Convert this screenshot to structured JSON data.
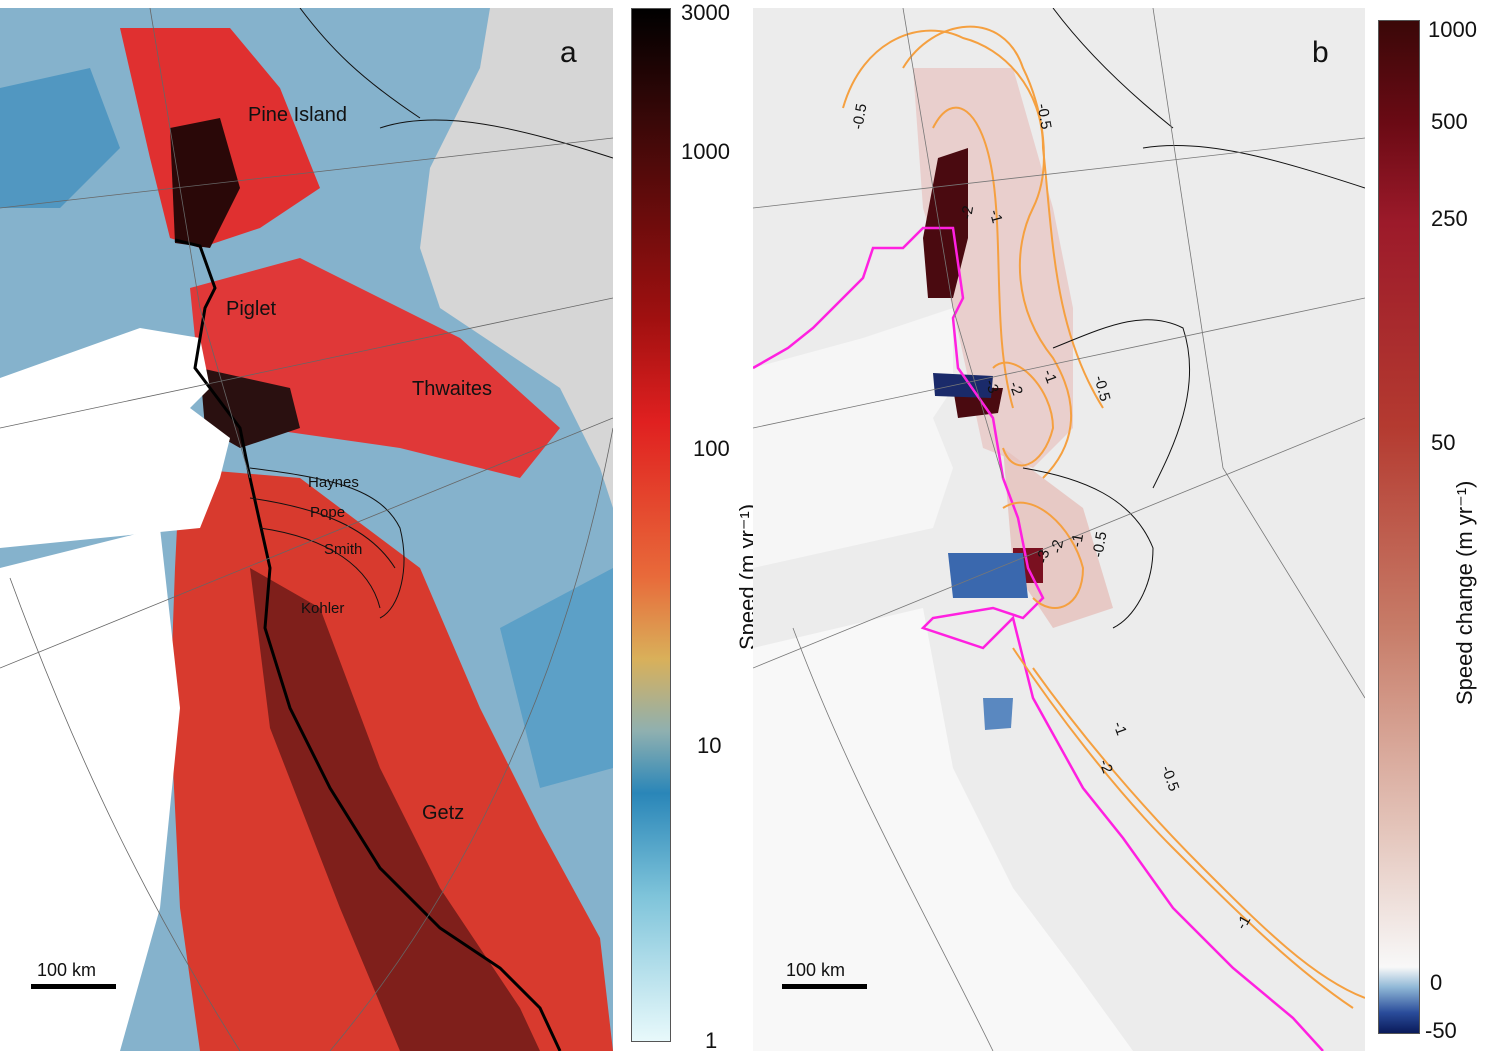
{
  "panel_a": {
    "letter": "a",
    "labels": {
      "pine_island": "Pine Island",
      "piglet": "Piglet",
      "thwaites": "Thwaites",
      "haynes": "Haynes",
      "pope": "Pope",
      "smith": "Smith",
      "kohler": "Kohler",
      "getz": "Getz"
    },
    "scalebar": "100 km",
    "colorbar": {
      "title": "Speed (m yr⁻¹)",
      "scale": "log",
      "ticks": [
        "3000",
        "1000",
        "100",
        "10",
        "1"
      ],
      "colors": {
        "max": "#000000",
        "high": "#a01010",
        "mid": "#e02020",
        "low": "#2a86b8",
        "min": "#e8f9fb"
      }
    }
  },
  "panel_b": {
    "letter": "b",
    "contour_labels": [
      "-0.5",
      "-0.5",
      "-2",
      "-1",
      "-1",
      "-0.5",
      "-3",
      "-2",
      "-3",
      "-2",
      "-1",
      "-0.5",
      "-1",
      "-2",
      "-0.5",
      "-1"
    ],
    "scalebar": "100 km",
    "colorbar": {
      "title": "Speed change (m yr⁻¹)",
      "ticks": [
        "1000",
        "500",
        "250",
        "50",
        "0",
        "-50"
      ],
      "colors": {
        "max": "#3a0808",
        "zero": "#f8f8f8",
        "min": "#0a1a5a"
      }
    },
    "line_colors": {
      "contours": "#f5a040",
      "grounding_line": "#ff20e0"
    }
  }
}
